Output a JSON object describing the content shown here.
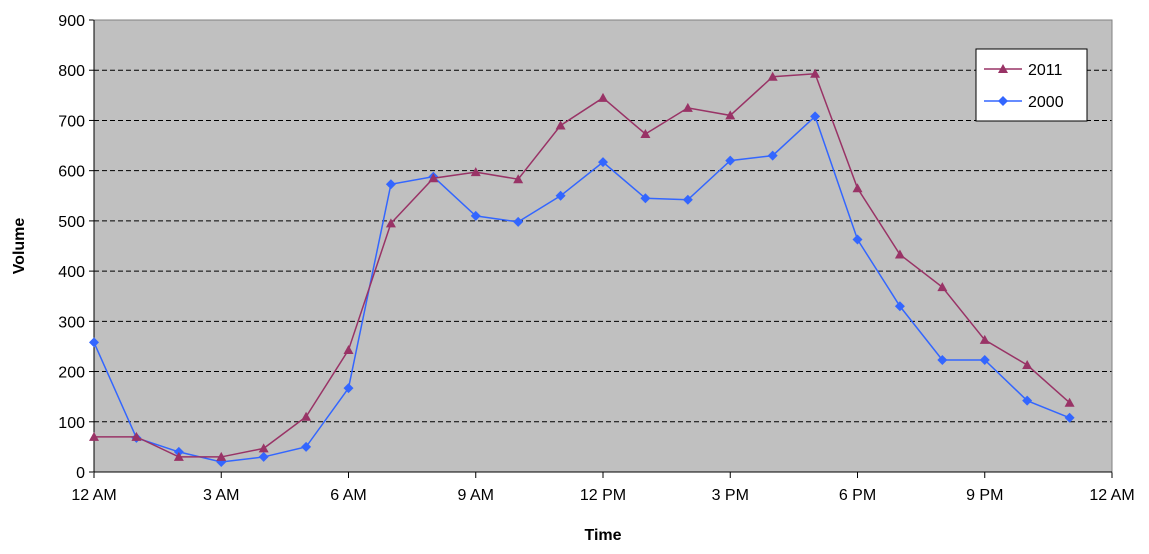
{
  "chart_data": {
    "type": "line",
    "xlabel": "Time",
    "ylabel": "Volume",
    "ylim": [
      0,
      900
    ],
    "yticks": [
      "0",
      "100",
      "200",
      "300",
      "400",
      "500",
      "600",
      "700",
      "800",
      "900"
    ],
    "xlim": [
      0,
      24
    ],
    "xticks": [
      {
        "h": 0,
        "label": "12 AM"
      },
      {
        "h": 3,
        "label": "3 AM"
      },
      {
        "h": 6,
        "label": "6 AM"
      },
      {
        "h": 9,
        "label": "9 AM"
      },
      {
        "h": 12,
        "label": "12 PM"
      },
      {
        "h": 15,
        "label": "3 PM"
      },
      {
        "h": 18,
        "label": "6 PM"
      },
      {
        "h": 21,
        "label": "9 PM"
      },
      {
        "h": 24,
        "label": "12 AM"
      }
    ],
    "grid": "horizontal dashed",
    "legend": "top-right",
    "plot_background": "#c0c0c0",
    "series": [
      {
        "name": "2011",
        "color": "#993366",
        "marker": "triangle",
        "x": [
          0,
          1,
          2,
          3,
          4,
          5,
          6,
          7,
          8,
          9,
          10,
          11,
          12,
          13,
          14,
          15,
          16,
          17,
          18,
          19,
          20,
          21,
          22,
          23
        ],
        "values": [
          70,
          70,
          30,
          30,
          47,
          110,
          243,
          495,
          585,
          597,
          583,
          690,
          745,
          673,
          725,
          710,
          787,
          793,
          565,
          433,
          368,
          263,
          213,
          138
        ]
      },
      {
        "name": "2000",
        "color": "#3366ff",
        "marker": "diamond",
        "x": [
          0,
          1,
          2,
          3,
          4,
          5,
          6,
          7,
          8,
          9,
          10,
          11,
          12,
          13,
          14,
          15,
          16,
          17,
          18,
          19,
          20,
          21,
          22,
          23
        ],
        "values": [
          258,
          68,
          40,
          20,
          30,
          50,
          167,
          573,
          588,
          510,
          498,
          550,
          617,
          545,
          542,
          620,
          630,
          708,
          463,
          330,
          223,
          223,
          142,
          108
        ]
      }
    ]
  }
}
